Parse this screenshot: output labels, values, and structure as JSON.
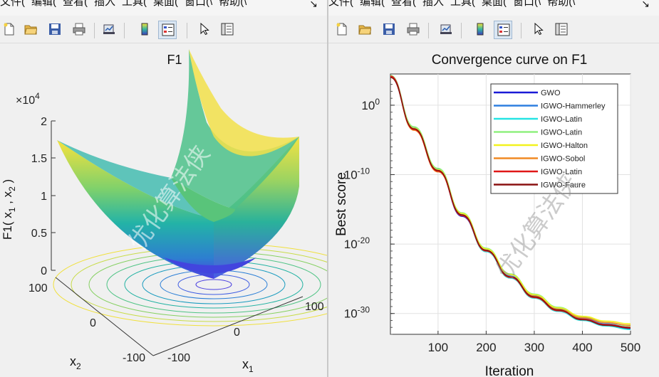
{
  "menu": [
    "文件(",
    "编辑(",
    "查看(",
    "插入",
    "工具(",
    "桌面(",
    "窗口(\\",
    "帮助(\\"
  ],
  "menu_arrow": "↘",
  "toolbar_icons": [
    "new-file-icon",
    "open-folder-icon",
    "save-icon",
    "print-icon",
    "link-plot-icon",
    "colorbar-icon",
    "legend-icon",
    "pointer-icon",
    "property-editor-icon"
  ],
  "watermark": "优化算法侠",
  "left_plot": {
    "title": "F1",
    "zlabel": "F1( x",
    "zlabel_sub1": "1",
    "zlabel_mid": " , x",
    "zlabel_sub2": "2",
    "zlabel_end": " )",
    "exponent_base": "×10",
    "exponent_pow": "4",
    "ztick_labels": [
      "2",
      "1.5",
      "1",
      "0.5",
      "0"
    ],
    "x1_tick_labels": [
      "-100",
      "0",
      "100"
    ],
    "x2_tick_labels": [
      "100",
      "0",
      "-100"
    ],
    "xlabel": "x",
    "xlabel_sub": "1",
    "ylabel": "x",
    "ylabel_sub": "2"
  },
  "chart_data": {
    "type": "line",
    "title": "Convergence curve on F1",
    "xlabel": "Iteration",
    "ylabel": "Best score",
    "xlim": [
      1,
      500
    ],
    "ylim_log10": [
      -33,
      4.5
    ],
    "yscale": "log",
    "xticks": [
      100,
      200,
      300,
      400,
      500
    ],
    "ytick_exponents": [
      0,
      -10,
      -20,
      -30
    ],
    "ytick_base": "10",
    "grid": true,
    "legend_position": "top-right",
    "series": [
      {
        "name": "GWO",
        "color": "#1a1ad6",
        "log10_values": [
          [
            1,
            4.0
          ],
          [
            50,
            -3.5
          ],
          [
            100,
            -9.5
          ],
          [
            150,
            -16.0
          ],
          [
            200,
            -21.0
          ],
          [
            250,
            -24.8
          ],
          [
            300,
            -27.6
          ],
          [
            350,
            -29.5
          ],
          [
            400,
            -30.9
          ],
          [
            450,
            -31.7
          ],
          [
            500,
            -32.2
          ]
        ]
      },
      {
        "name": "IGWO-Hammerley",
        "color": "#2e7fe0",
        "log10_values": [
          [
            1,
            4.2
          ],
          [
            50,
            -3.2
          ],
          [
            100,
            -9.2
          ],
          [
            150,
            -15.7
          ],
          [
            200,
            -20.8
          ],
          [
            250,
            -24.6
          ],
          [
            300,
            -27.4
          ],
          [
            350,
            -29.3
          ],
          [
            400,
            -30.7
          ],
          [
            450,
            -31.5
          ],
          [
            500,
            -32.0
          ]
        ]
      },
      {
        "name": "IGWO-Latin",
        "color": "#25e3e3",
        "log10_values": [
          [
            1,
            4.1
          ],
          [
            50,
            -3.4
          ],
          [
            100,
            -9.4
          ],
          [
            150,
            -15.9
          ],
          [
            200,
            -21.1
          ],
          [
            250,
            -24.9
          ],
          [
            300,
            -27.8
          ],
          [
            350,
            -29.7
          ],
          [
            400,
            -31.0
          ],
          [
            450,
            -31.8
          ],
          [
            500,
            -32.3
          ]
        ]
      },
      {
        "name": "IGWO-Latin",
        "color": "#8ff07e",
        "log10_values": [
          [
            1,
            4.3
          ],
          [
            50,
            -3.1
          ],
          [
            100,
            -9.1
          ],
          [
            150,
            -15.5
          ],
          [
            200,
            -20.6
          ],
          [
            250,
            -24.3
          ],
          [
            300,
            -27.2
          ],
          [
            350,
            -29.1
          ],
          [
            400,
            -30.5
          ],
          [
            450,
            -31.3
          ],
          [
            500,
            -31.8
          ]
        ]
      },
      {
        "name": "IGWO-Halton",
        "color": "#f2f21e",
        "log10_values": [
          [
            1,
            4.0
          ],
          [
            50,
            -3.3
          ],
          [
            100,
            -9.3
          ],
          [
            150,
            -15.6
          ],
          [
            200,
            -20.7
          ],
          [
            250,
            -24.4
          ],
          [
            300,
            -27.3
          ],
          [
            350,
            -29.2
          ],
          [
            400,
            -30.4
          ],
          [
            450,
            -31.1
          ],
          [
            500,
            -31.5
          ]
        ]
      },
      {
        "name": "IGWO-Sobol",
        "color": "#f08a24",
        "log10_values": [
          [
            1,
            4.1
          ],
          [
            50,
            -3.6
          ],
          [
            100,
            -9.6
          ],
          [
            150,
            -15.8
          ],
          [
            200,
            -20.9
          ],
          [
            250,
            -24.7
          ],
          [
            300,
            -27.5
          ],
          [
            350,
            -29.4
          ],
          [
            400,
            -30.6
          ],
          [
            450,
            -31.3
          ],
          [
            500,
            -31.7
          ]
        ]
      },
      {
        "name": "IGWO-Latin",
        "color": "#e01818",
        "log10_values": [
          [
            1,
            4.2
          ],
          [
            50,
            -3.5
          ],
          [
            100,
            -9.5
          ],
          [
            150,
            -15.9
          ],
          [
            200,
            -21.0
          ],
          [
            250,
            -24.8
          ],
          [
            300,
            -27.7
          ],
          [
            350,
            -29.6
          ],
          [
            400,
            -30.8
          ],
          [
            450,
            -31.6
          ],
          [
            500,
            -32.0
          ]
        ]
      },
      {
        "name": "IGWO-Faure",
        "color": "#8a1010",
        "log10_values": [
          [
            1,
            4.0
          ],
          [
            50,
            -3.4
          ],
          [
            100,
            -9.4
          ],
          [
            150,
            -15.8
          ],
          [
            200,
            -20.9
          ],
          [
            250,
            -24.7
          ],
          [
            300,
            -27.6
          ],
          [
            350,
            -29.5
          ],
          [
            400,
            -30.9
          ],
          [
            450,
            -31.7
          ],
          [
            500,
            -32.1
          ]
        ]
      }
    ]
  }
}
